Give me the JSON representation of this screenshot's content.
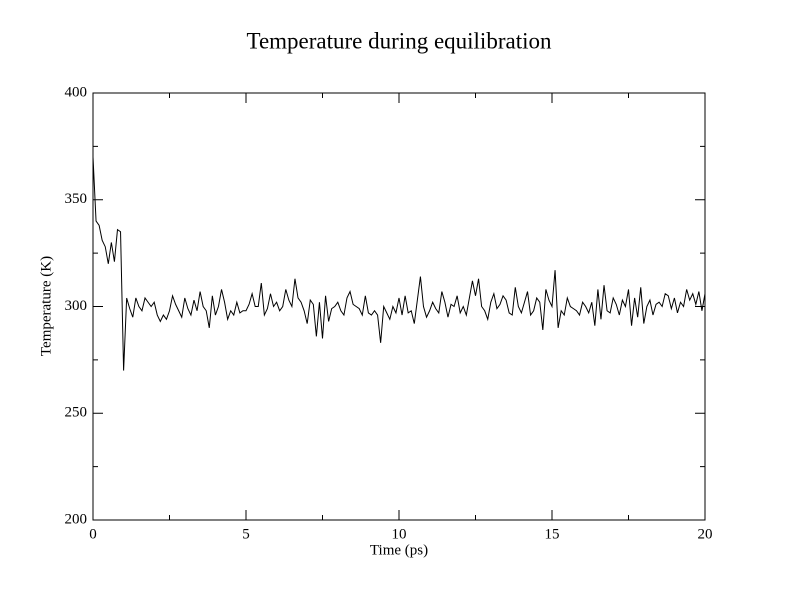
{
  "chart_data": {
    "type": "line",
    "title": "Temperature during equilibration",
    "x_label": "Time (ps)",
    "y_label": "Temperature (K)",
    "color": "#000000",
    "xlim": [
      0,
      20
    ],
    "xticks": [
      0,
      5,
      10,
      15,
      20
    ],
    "ylim": [
      200,
      400
    ],
    "yticks": [
      200,
      250,
      300,
      350,
      400
    ],
    "x": [
      0,
      0.1,
      0.2,
      0.3,
      0.4,
      0.5,
      0.6,
      0.7,
      0.8,
      0.9,
      1,
      1.1,
      1.2,
      1.3,
      1.4,
      1.5,
      1.6,
      1.7,
      1.8,
      1.9,
      2,
      2.1,
      2.2,
      2.3,
      2.4,
      2.5,
      2.6,
      2.7,
      2.8,
      2.9,
      3,
      3.1,
      3.2,
      3.3,
      3.4,
      3.5,
      3.6,
      3.7,
      3.8,
      3.9,
      4,
      4.1,
      4.2,
      4.3,
      4.4,
      4.5,
      4.6,
      4.7,
      4.8,
      4.9,
      5,
      5.1,
      5.2,
      5.3,
      5.4,
      5.5,
      5.6,
      5.7,
      5.8,
      5.9,
      6,
      6.1,
      6.2,
      6.3,
      6.4,
      6.5,
      6.6,
      6.7,
      6.8,
      6.9,
      7,
      7.1,
      7.2,
      7.3,
      7.4,
      7.5,
      7.6,
      7.7,
      7.8,
      7.9,
      8,
      8.1,
      8.2,
      8.3,
      8.4,
      8.5,
      8.6,
      8.7,
      8.8,
      8.9,
      9,
      9.1,
      9.2,
      9.3,
      9.4,
      9.5,
      9.6,
      9.7,
      9.8,
      9.9,
      10,
      10.1,
      10.2,
      10.3,
      10.4,
      10.5,
      10.6,
      10.7,
      10.8,
      10.9,
      11,
      11.1,
      11.2,
      11.3,
      11.4,
      11.5,
      11.6,
      11.7,
      11.8,
      11.9,
      12,
      12.1,
      12.2,
      12.3,
      12.4,
      12.5,
      12.6,
      12.7,
      12.8,
      12.9,
      13,
      13.1,
      13.2,
      13.3,
      13.4,
      13.5,
      13.6,
      13.7,
      13.8,
      13.9,
      14,
      14.1,
      14.2,
      14.3,
      14.4,
      14.5,
      14.6,
      14.7,
      14.8,
      14.9,
      15,
      15.1,
      15.2,
      15.3,
      15.4,
      15.5,
      15.6,
      15.7,
      15.8,
      15.9,
      16,
      16.1,
      16.2,
      16.3,
      16.4,
      16.5,
      16.6,
      16.7,
      16.8,
      16.9,
      17,
      17.1,
      17.2,
      17.3,
      17.4,
      17.5,
      17.6,
      17.7,
      17.8,
      17.9,
      18,
      18.1,
      18.2,
      18.3,
      18.4,
      18.5,
      18.6,
      18.7,
      18.8,
      18.9,
      19,
      19.1,
      19.2,
      19.3,
      19.4,
      19.5,
      19.6,
      19.7,
      19.8,
      19.9,
      20
    ],
    "values": [
      370,
      340,
      338,
      331,
      328,
      320,
      330,
      321,
      336,
      335,
      270,
      304,
      299,
      295,
      304,
      300,
      298,
      304,
      302,
      300,
      302,
      296,
      293,
      296,
      294,
      298,
      305,
      301,
      298,
      295,
      304,
      299,
      296,
      303,
      298,
      307,
      300,
      298,
      290,
      305,
      296,
      300,
      308,
      302,
      294,
      298,
      296,
      302,
      297,
      298,
      298,
      301,
      306,
      300,
      300,
      311,
      296,
      299,
      306,
      300,
      302,
      298,
      300,
      308,
      303,
      300,
      313,
      304,
      302,
      298,
      292,
      303,
      301,
      286,
      302,
      285,
      305,
      293,
      299,
      300,
      302,
      298,
      296,
      304,
      307,
      301,
      300,
      299,
      296,
      305,
      297,
      296,
      298,
      296,
      283,
      300,
      297,
      294,
      300,
      297,
      304,
      296,
      305,
      297,
      298,
      292,
      303,
      314,
      300,
      295,
      298,
      302,
      299,
      297,
      307,
      302,
      295,
      301,
      300,
      305,
      297,
      300,
      296,
      304,
      312,
      305,
      313,
      300,
      298,
      294,
      302,
      306,
      299,
      301,
      305,
      303,
      297,
      296,
      309,
      300,
      297,
      302,
      307,
      296,
      298,
      304,
      302,
      289,
      308,
      303,
      300,
      317,
      290,
      298,
      296,
      304,
      300,
      299,
      298,
      296,
      302,
      300,
      297,
      302,
      291,
      308,
      294,
      310,
      298,
      297,
      304,
      301,
      296,
      303,
      300,
      308,
      291,
      304,
      295,
      309,
      292,
      300,
      303,
      296,
      301,
      302,
      300,
      306,
      305,
      299,
      304,
      297,
      302,
      300,
      308,
      303,
      306,
      301,
      307,
      298,
      306
    ]
  }
}
